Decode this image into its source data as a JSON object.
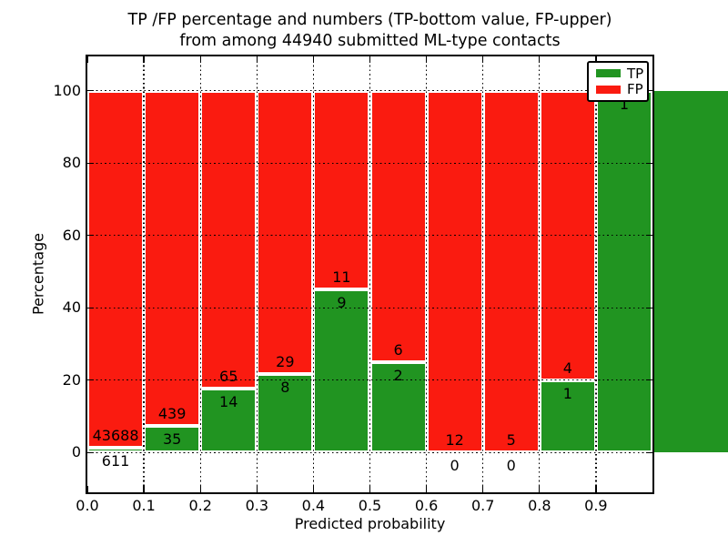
{
  "chart_data": {
    "type": "bar",
    "subtype": "stacked-percentage-histogram",
    "title_line1": "TP /FP percentage and numbers (TP-bottom value, FP-upper)",
    "title_line2": "from among 44940 submitted ML-type contacts",
    "total_contacts": 44940,
    "xlabel": "Predicted probability",
    "ylabel": "Percentage",
    "x_tick_labels": [
      "0.0",
      "0.1",
      "0.2",
      "0.3",
      "0.4",
      "0.5",
      "0.6",
      "0.7",
      "0.8",
      "0.9"
    ],
    "y_tick_labels": [
      "0",
      "20",
      "40",
      "60",
      "80",
      "100"
    ],
    "y_tick_values": [
      0,
      20,
      40,
      60,
      80,
      100
    ],
    "xlim": [
      0.0,
      1.0
    ],
    "ylim": [
      -11,
      109.5
    ],
    "grid": "black-dotted",
    "colors": {
      "tp": "#219421",
      "fp": "#fa1b10",
      "bar_edge": "#ffffff",
      "spine": "#000000",
      "background": "#ffffff"
    },
    "legend": {
      "position": "upper-right",
      "entries": [
        {
          "label": "TP",
          "color": "#219421"
        },
        {
          "label": "FP",
          "color": "#fa1b10"
        }
      ]
    },
    "bins": [
      {
        "x_start": 0.0,
        "x_end": 0.1,
        "tp_count": 611,
        "fp_count": 43688,
        "tp_pct": 1.38,
        "fp_pct": 98.62,
        "tp_label": "611",
        "fp_label": "43688"
      },
      {
        "x_start": 0.1,
        "x_end": 0.2,
        "tp_count": 35,
        "fp_count": 439,
        "tp_pct": 7.38,
        "fp_pct": 92.62,
        "tp_label": "35",
        "fp_label": "439"
      },
      {
        "x_start": 0.2,
        "x_end": 0.3,
        "tp_count": 14,
        "fp_count": 65,
        "tp_pct": 17.72,
        "fp_pct": 82.28,
        "tp_label": "14",
        "fp_label": "65"
      },
      {
        "x_start": 0.3,
        "x_end": 0.4,
        "tp_count": 8,
        "fp_count": 29,
        "tp_pct": 21.62,
        "fp_pct": 78.38,
        "tp_label": "8",
        "fp_label": "29"
      },
      {
        "x_start": 0.4,
        "x_end": 0.5,
        "tp_count": 9,
        "fp_count": 11,
        "tp_pct": 45.0,
        "fp_pct": 55.0,
        "tp_label": "9",
        "fp_label": "11"
      },
      {
        "x_start": 0.5,
        "x_end": 0.6,
        "tp_count": 2,
        "fp_count": 6,
        "tp_pct": 25.0,
        "fp_pct": 75.0,
        "tp_label": "2",
        "fp_label": "6"
      },
      {
        "x_start": 0.6,
        "x_end": 0.7,
        "tp_count": 0,
        "fp_count": 12,
        "tp_pct": 0.0,
        "fp_pct": 100.0,
        "tp_label": "0",
        "fp_label": "12"
      },
      {
        "x_start": 0.7,
        "x_end": 0.8,
        "tp_count": 0,
        "fp_count": 5,
        "tp_pct": 0.0,
        "fp_pct": 100.0,
        "tp_label": "0",
        "fp_label": "5"
      },
      {
        "x_start": 0.8,
        "x_end": 0.9,
        "tp_count": 1,
        "fp_count": 4,
        "tp_pct": 20.0,
        "fp_pct": 80.0,
        "tp_label": "1",
        "fp_label": "4"
      },
      {
        "x_start": 0.9,
        "x_end": 1.0,
        "tp_count": 1,
        "tp_pct": 100.0,
        "fp_pct": 0.0,
        "tp_label": "1",
        "fp_label": "",
        "bar_extends_to_figure_edge": true
      }
    ]
  }
}
